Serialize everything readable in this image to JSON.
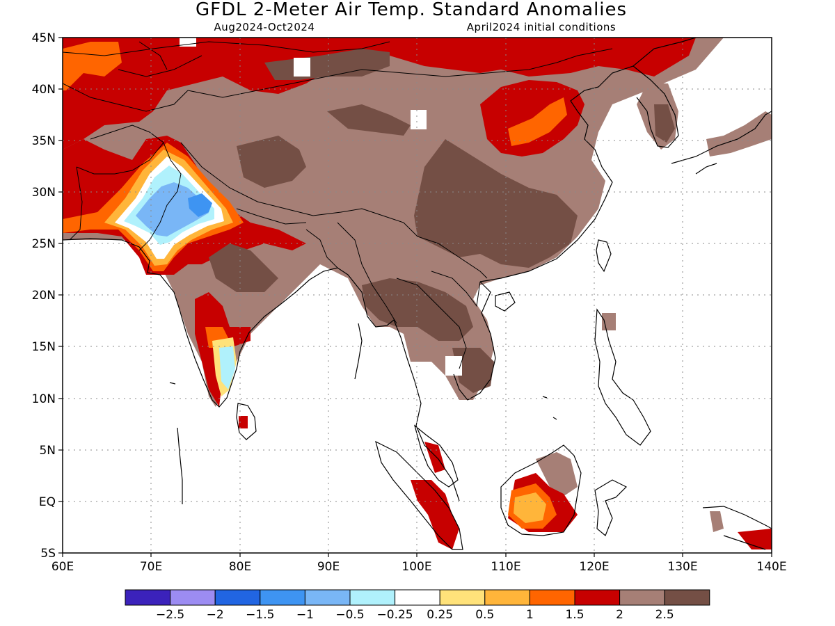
{
  "title": "GFDL 2-Meter Air Temp. Standard Anomalies",
  "subtitle_left": "Aug2024-Oct2024",
  "subtitle_right": "April2024 initial conditions",
  "lat_ticks": [
    "45N",
    "40N",
    "35N",
    "30N",
    "25N",
    "20N",
    "15N",
    "10N",
    "5N",
    "EQ",
    "5S"
  ],
  "lon_ticks": [
    "60E",
    "70E",
    "80E",
    "90E",
    "100E",
    "110E",
    "120E",
    "130E",
    "140E"
  ],
  "colorbar": {
    "colors": [
      "#3b22bb",
      "#9c8cf2",
      "#2165e2",
      "#3e94f2",
      "#79b6f6",
      "#b0f1fc",
      "#ffffff",
      "#ffe27a",
      "#ffb53a",
      "#ff6500",
      "#c70000",
      "#a67f76",
      "#744f45"
    ],
    "labels": [
      "-2.5",
      "-2",
      "-1.5",
      "-1",
      "-0.5",
      "-0.25",
      "0.25",
      "0.5",
      "1",
      "1.5",
      "2",
      "2.5"
    ]
  },
  "legend_meaning": {
    "strong_warm": "#744f45",
    "warm": "#a67f76",
    "hot": "#c70000",
    "cool": "#79b6f6"
  }
}
